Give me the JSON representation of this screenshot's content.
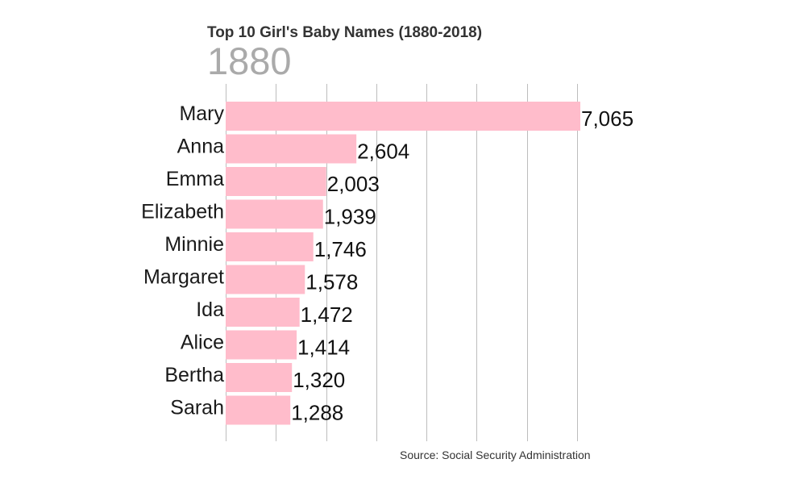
{
  "chart_data": {
    "type": "bar",
    "orientation": "horizontal",
    "title": "Top 10 Girl's Baby Names (1880-2018)",
    "year": "1880",
    "source": "Source: Social Security Administration",
    "categories": [
      "Mary",
      "Anna",
      "Emma",
      "Elizabeth",
      "Minnie",
      "Margaret",
      "Ida",
      "Alice",
      "Bertha",
      "Sarah"
    ],
    "values": [
      7065,
      2604,
      2003,
      1939,
      1746,
      1578,
      1472,
      1414,
      1320,
      1288
    ],
    "value_labels": [
      "7,065",
      "2,604",
      "2,003",
      "1,939",
      "1,746",
      "1,578",
      "1,472",
      "1,414",
      "1,320",
      "1,288"
    ],
    "xlim": [
      0,
      7065
    ],
    "gridlines": [
      1000,
      2000,
      3000,
      4000,
      5000,
      6000,
      7000
    ],
    "grid": true,
    "bar_color": "#ffbccb"
  }
}
